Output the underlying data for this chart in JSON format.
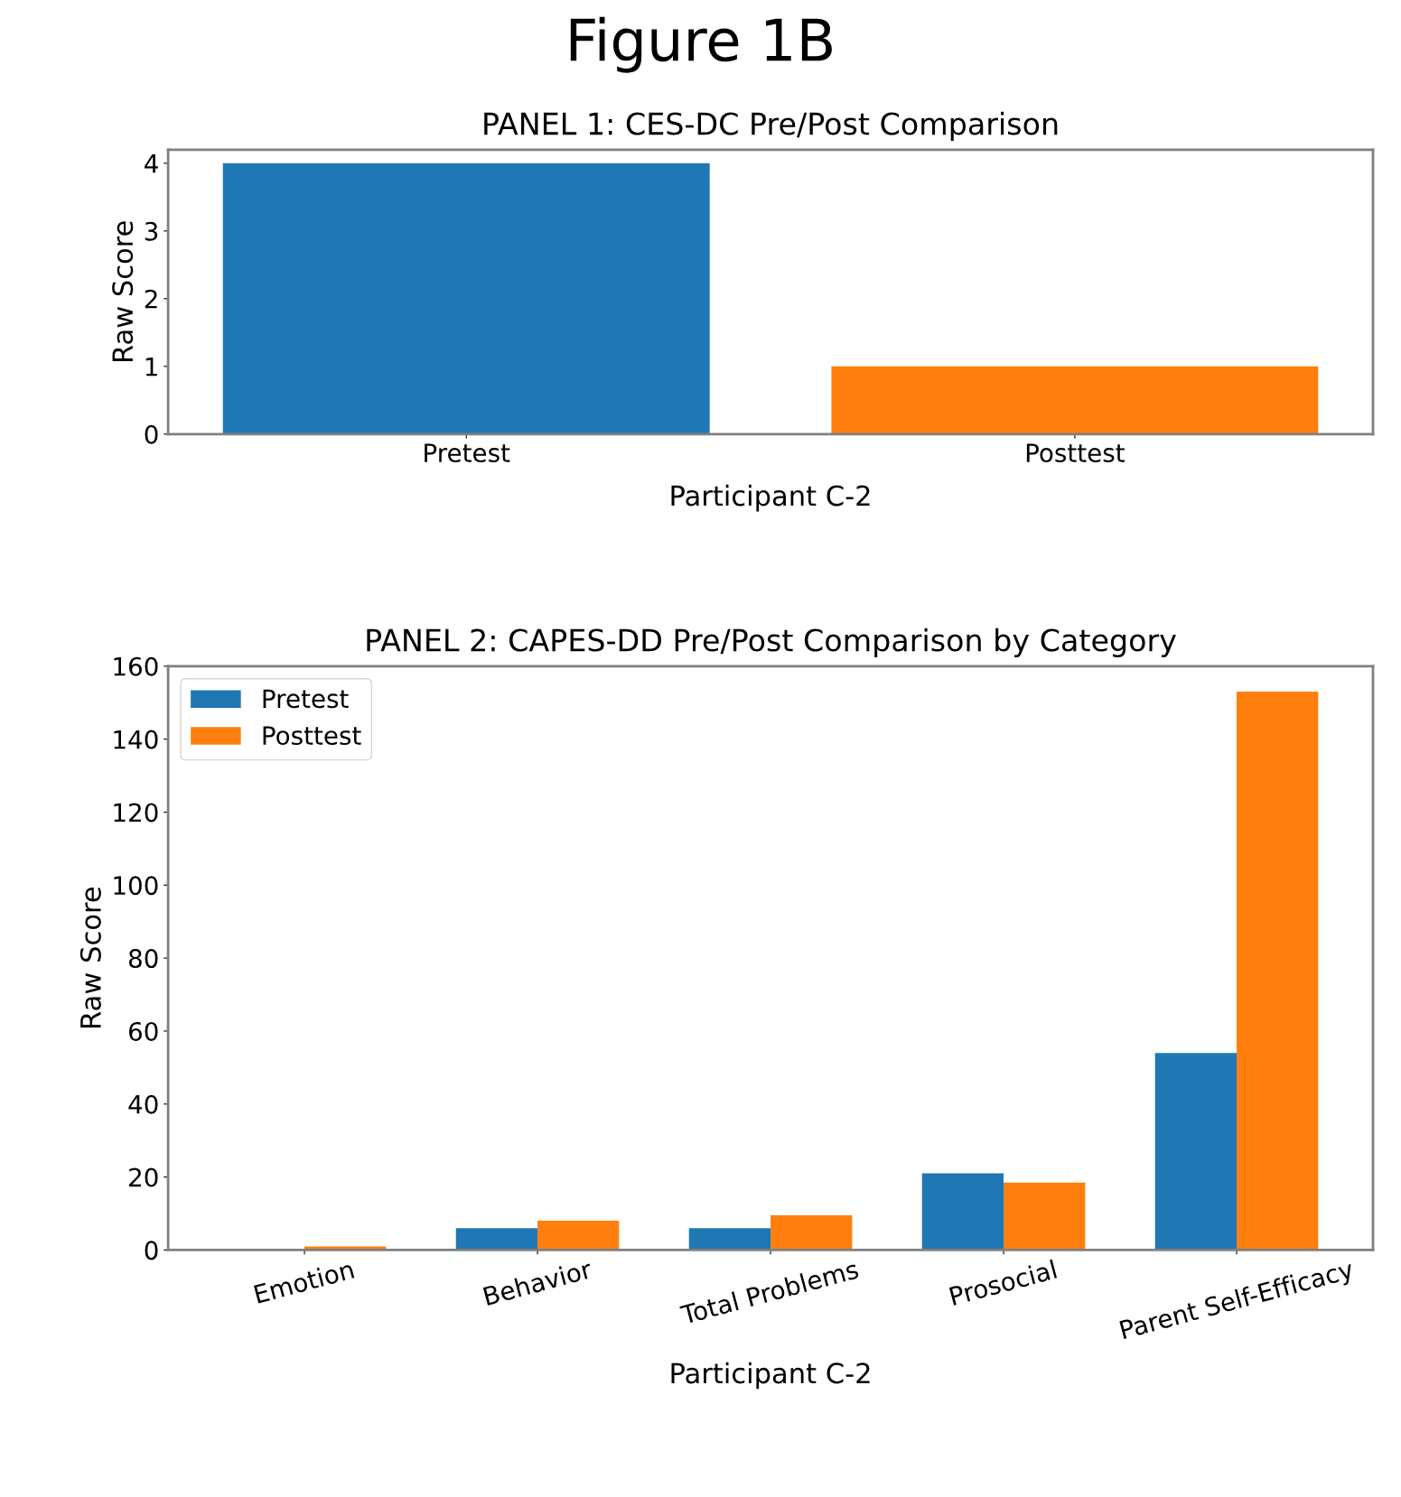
{
  "chart_data": [
    {
      "type": "bar",
      "title": "PANEL 1: CES-DC Pre/Post Comparison",
      "annotations": [
        "Figure 1B"
      ],
      "xlabel": "Participant C-2",
      "ylabel": "Raw Score",
      "categories": [
        "Pretest",
        "Posttest"
      ],
      "values": [
        4,
        1
      ],
      "colors": [
        "#1f77b4",
        "#ff7f0e"
      ],
      "ylim": [
        0,
        4.2
      ],
      "yticks": [
        0,
        1,
        2,
        3,
        4
      ],
      "grid": false,
      "legend": false
    },
    {
      "type": "bar",
      "title": "PANEL 2: CAPES-DD Pre/Post Comparison by Category",
      "xlabel": "Participant C-2",
      "ylabel": "Raw Score",
      "categories": [
        "Emotion",
        "Behavior",
        "Total Problems",
        "Prosocial",
        "Parent Self-Efficacy"
      ],
      "series": [
        {
          "name": "Pretest",
          "color": "#1f77b4",
          "values": [
            0,
            6,
            6,
            21,
            54
          ]
        },
        {
          "name": "Posttest",
          "color": "#ff7f0e",
          "values": [
            1,
            8,
            9.5,
            18.5,
            153
          ]
        }
      ],
      "ylim": [
        0,
        160
      ],
      "yticks": [
        0,
        20,
        40,
        60,
        80,
        100,
        120,
        140,
        160
      ],
      "grid": false,
      "legend": "top left"
    }
  ]
}
